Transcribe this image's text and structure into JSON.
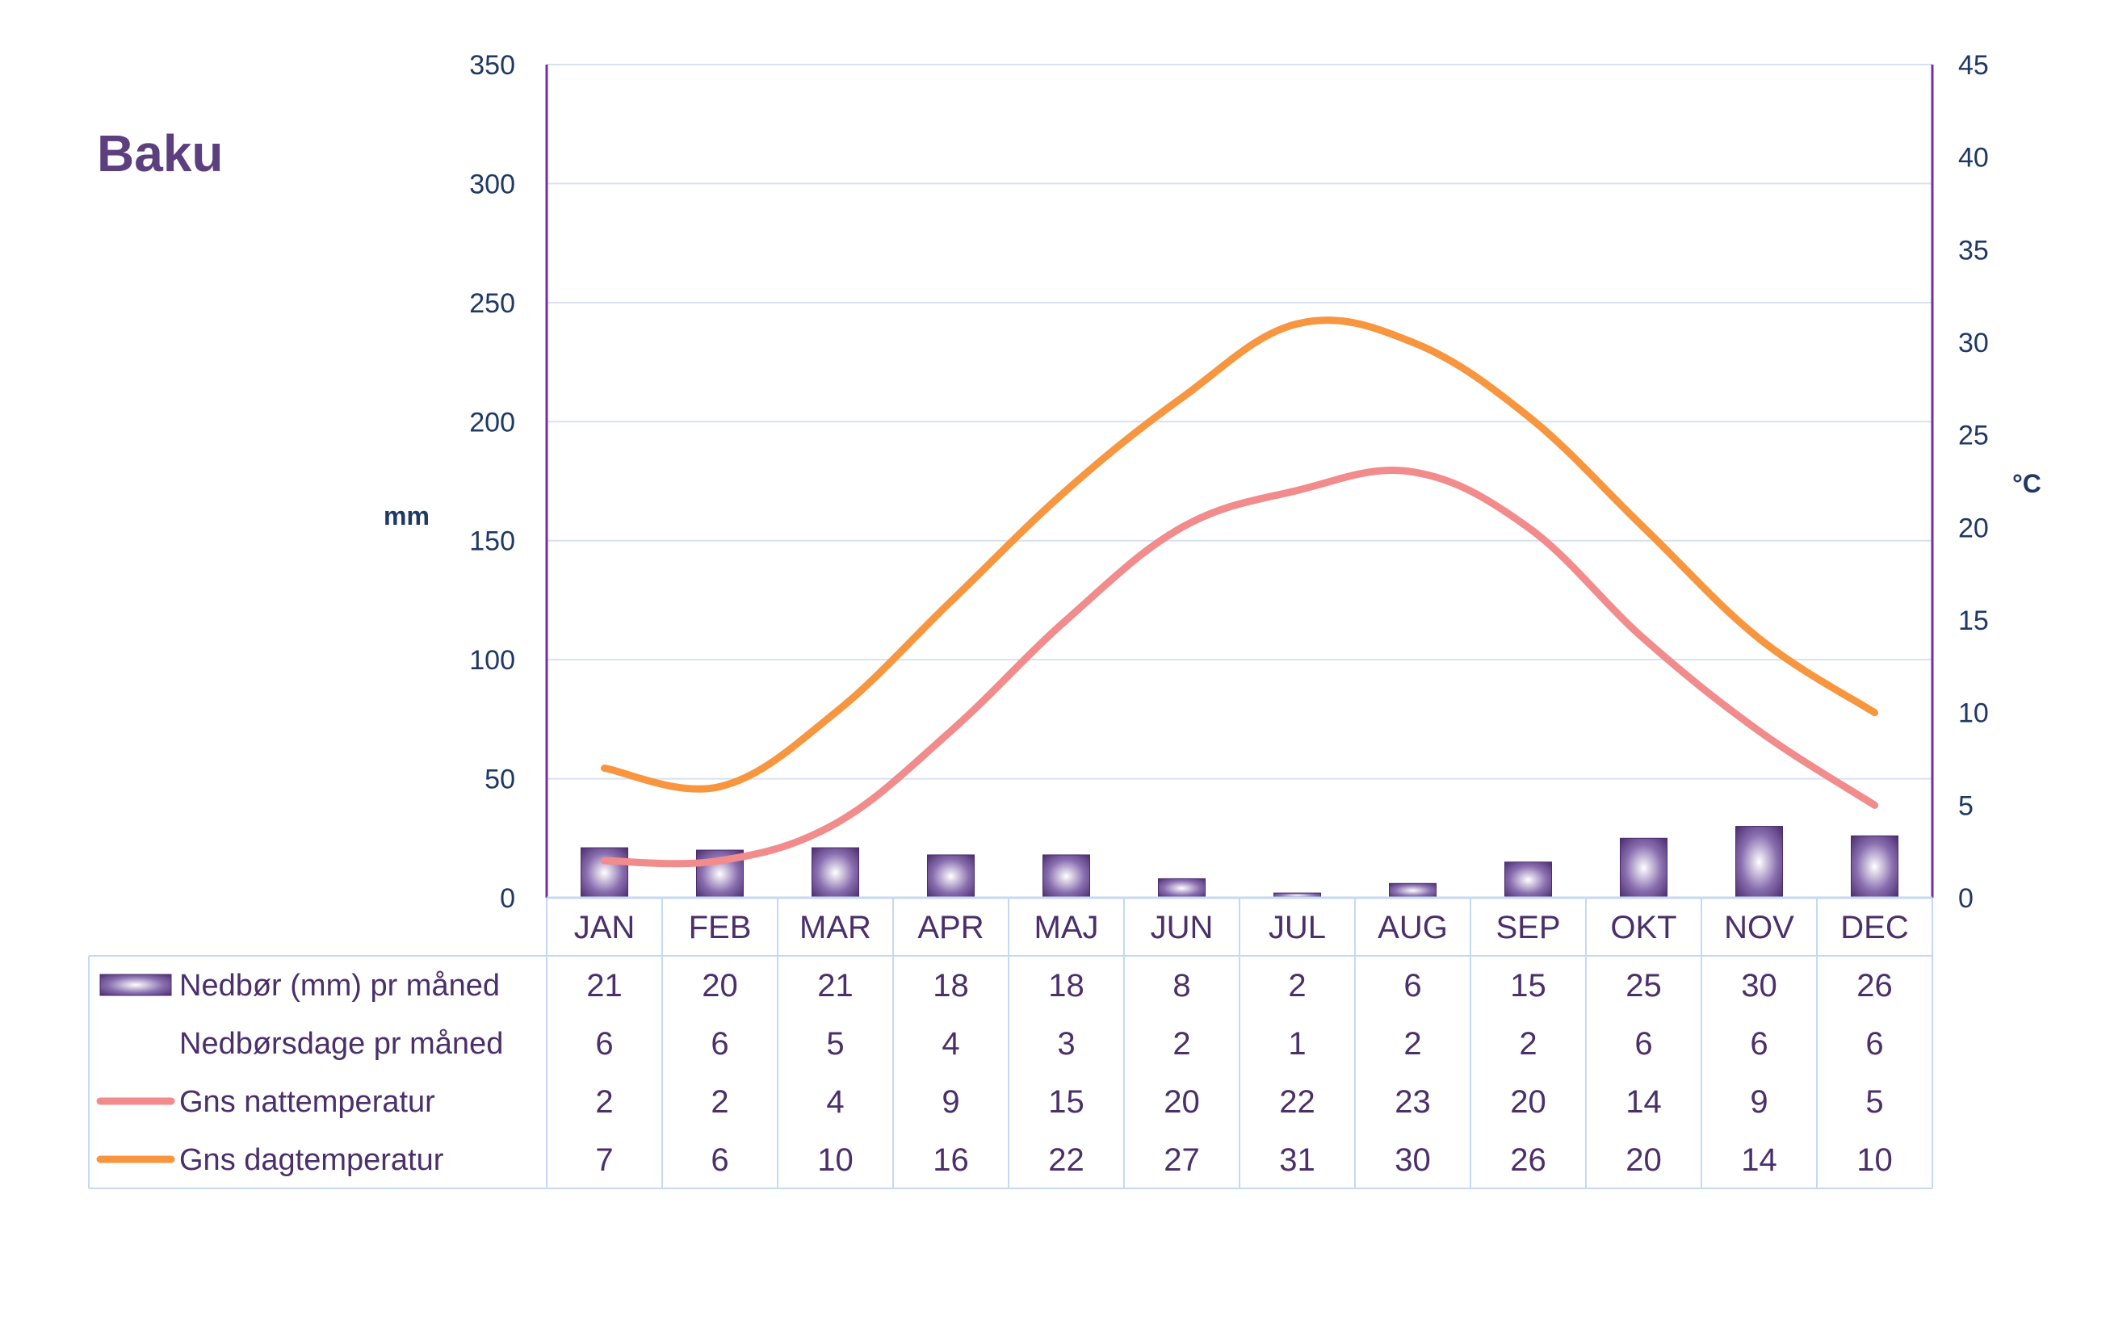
{
  "chart_data": {
    "type": "bar",
    "title": "Baku",
    "categories": [
      "JAN",
      "FEB",
      "MAR",
      "APR",
      "MAJ",
      "JUN",
      "JUL",
      "AUG",
      "SEP",
      "OKT",
      "NOV",
      "DEC"
    ],
    "y_left": {
      "label": "mm",
      "ylim": [
        0,
        350
      ],
      "ticks": [
        "0",
        "50",
        "100",
        "150",
        "200",
        "250",
        "300",
        "350"
      ]
    },
    "y_right": {
      "label": "°C",
      "ylim": [
        0,
        45
      ],
      "ticks": [
        "0",
        "5",
        "10",
        "15",
        "20",
        "25",
        "30",
        "35",
        "40",
        "45"
      ]
    },
    "grid": true,
    "series": [
      {
        "name": "Nedbør (mm) pr måned",
        "type": "bar",
        "axis": "left",
        "color": "#5b3f7e",
        "values": [
          21,
          20,
          21,
          18,
          18,
          8,
          2,
          6,
          15,
          25,
          30,
          26
        ]
      },
      {
        "name": "Nedbørsdage pr måned",
        "type": "table",
        "values": [
          6,
          6,
          5,
          4,
          3,
          2,
          1,
          2,
          2,
          6,
          6,
          6
        ]
      },
      {
        "name": "Gns nattemperatur",
        "type": "line",
        "axis": "right",
        "color": "#f28b8b",
        "values": [
          2,
          2,
          4,
          9,
          15,
          20,
          22,
          23,
          20,
          14,
          9,
          5
        ]
      },
      {
        "name": "Gns dagtemperatur",
        "type": "line",
        "axis": "right",
        "color": "#f7963f",
        "values": [
          7,
          6,
          10,
          16,
          22,
          27,
          31,
          30,
          26,
          20,
          14,
          10
        ]
      }
    ]
  },
  "colors": {
    "grid": "#d6e2f0",
    "axis": "#7030a0",
    "table_border": "#c5d9f1",
    "text": "#4a2f6b",
    "tick": "#1f3864"
  }
}
